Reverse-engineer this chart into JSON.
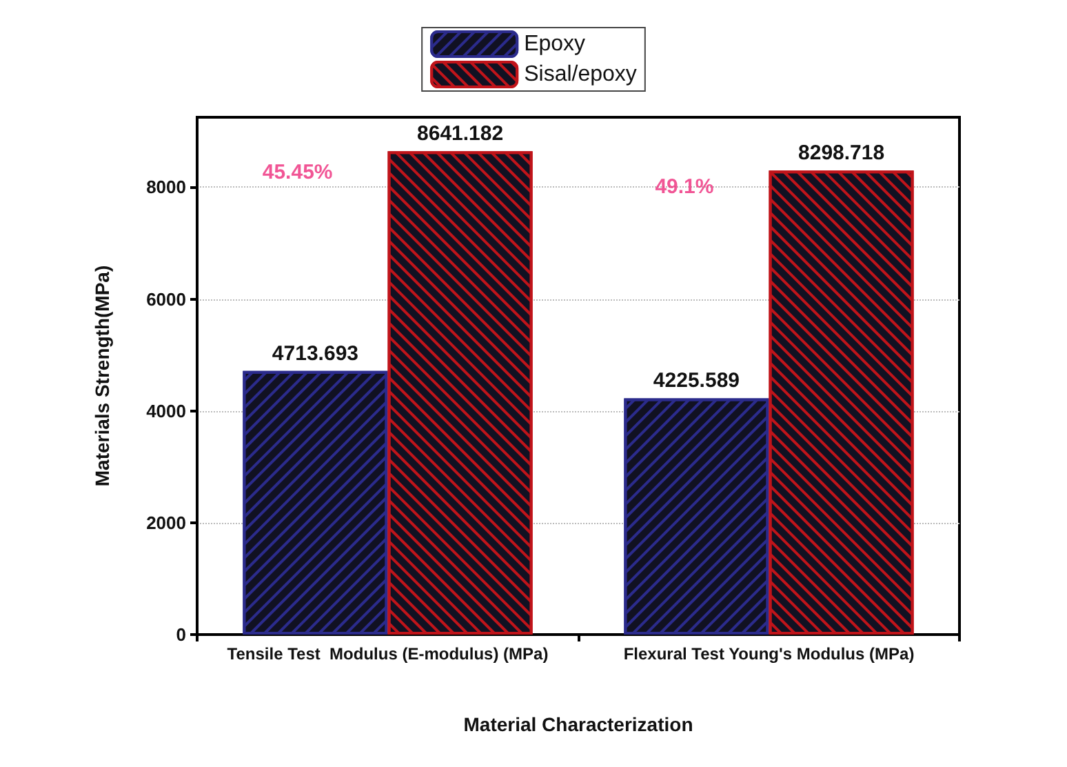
{
  "chart_data": {
    "type": "bar",
    "xlabel": "Material Characterization",
    "ylabel": "Materials Strength(MPa)",
    "categories": [
      "Tensile Test  Modulus (E-modulus) (MPa)",
      "Flexural Test Young's Modulus (MPa)"
    ],
    "series": [
      {
        "name": "Epoxy",
        "color": "#2b2b8c",
        "values": [
          4713.693,
          4225.589
        ]
      },
      {
        "name": "Sisal/epoxy",
        "color": "#c0141a",
        "values": [
          8641.182,
          8298.718
        ]
      }
    ],
    "data_labels": true,
    "ylim": [
      0,
      9250
    ],
    "yticks": [
      0,
      2000,
      4000,
      6000,
      8000
    ],
    "annotations": [
      {
        "text": "45.45%",
        "x": "Tensile Test  Modulus (E-modulus) (MPa)",
        "y": 8260
      },
      {
        "text": "49.1%",
        "x": "Flexural Test Young's Modulus (MPa)",
        "y": 8000
      }
    ],
    "grid": "y",
    "legend": "top"
  }
}
